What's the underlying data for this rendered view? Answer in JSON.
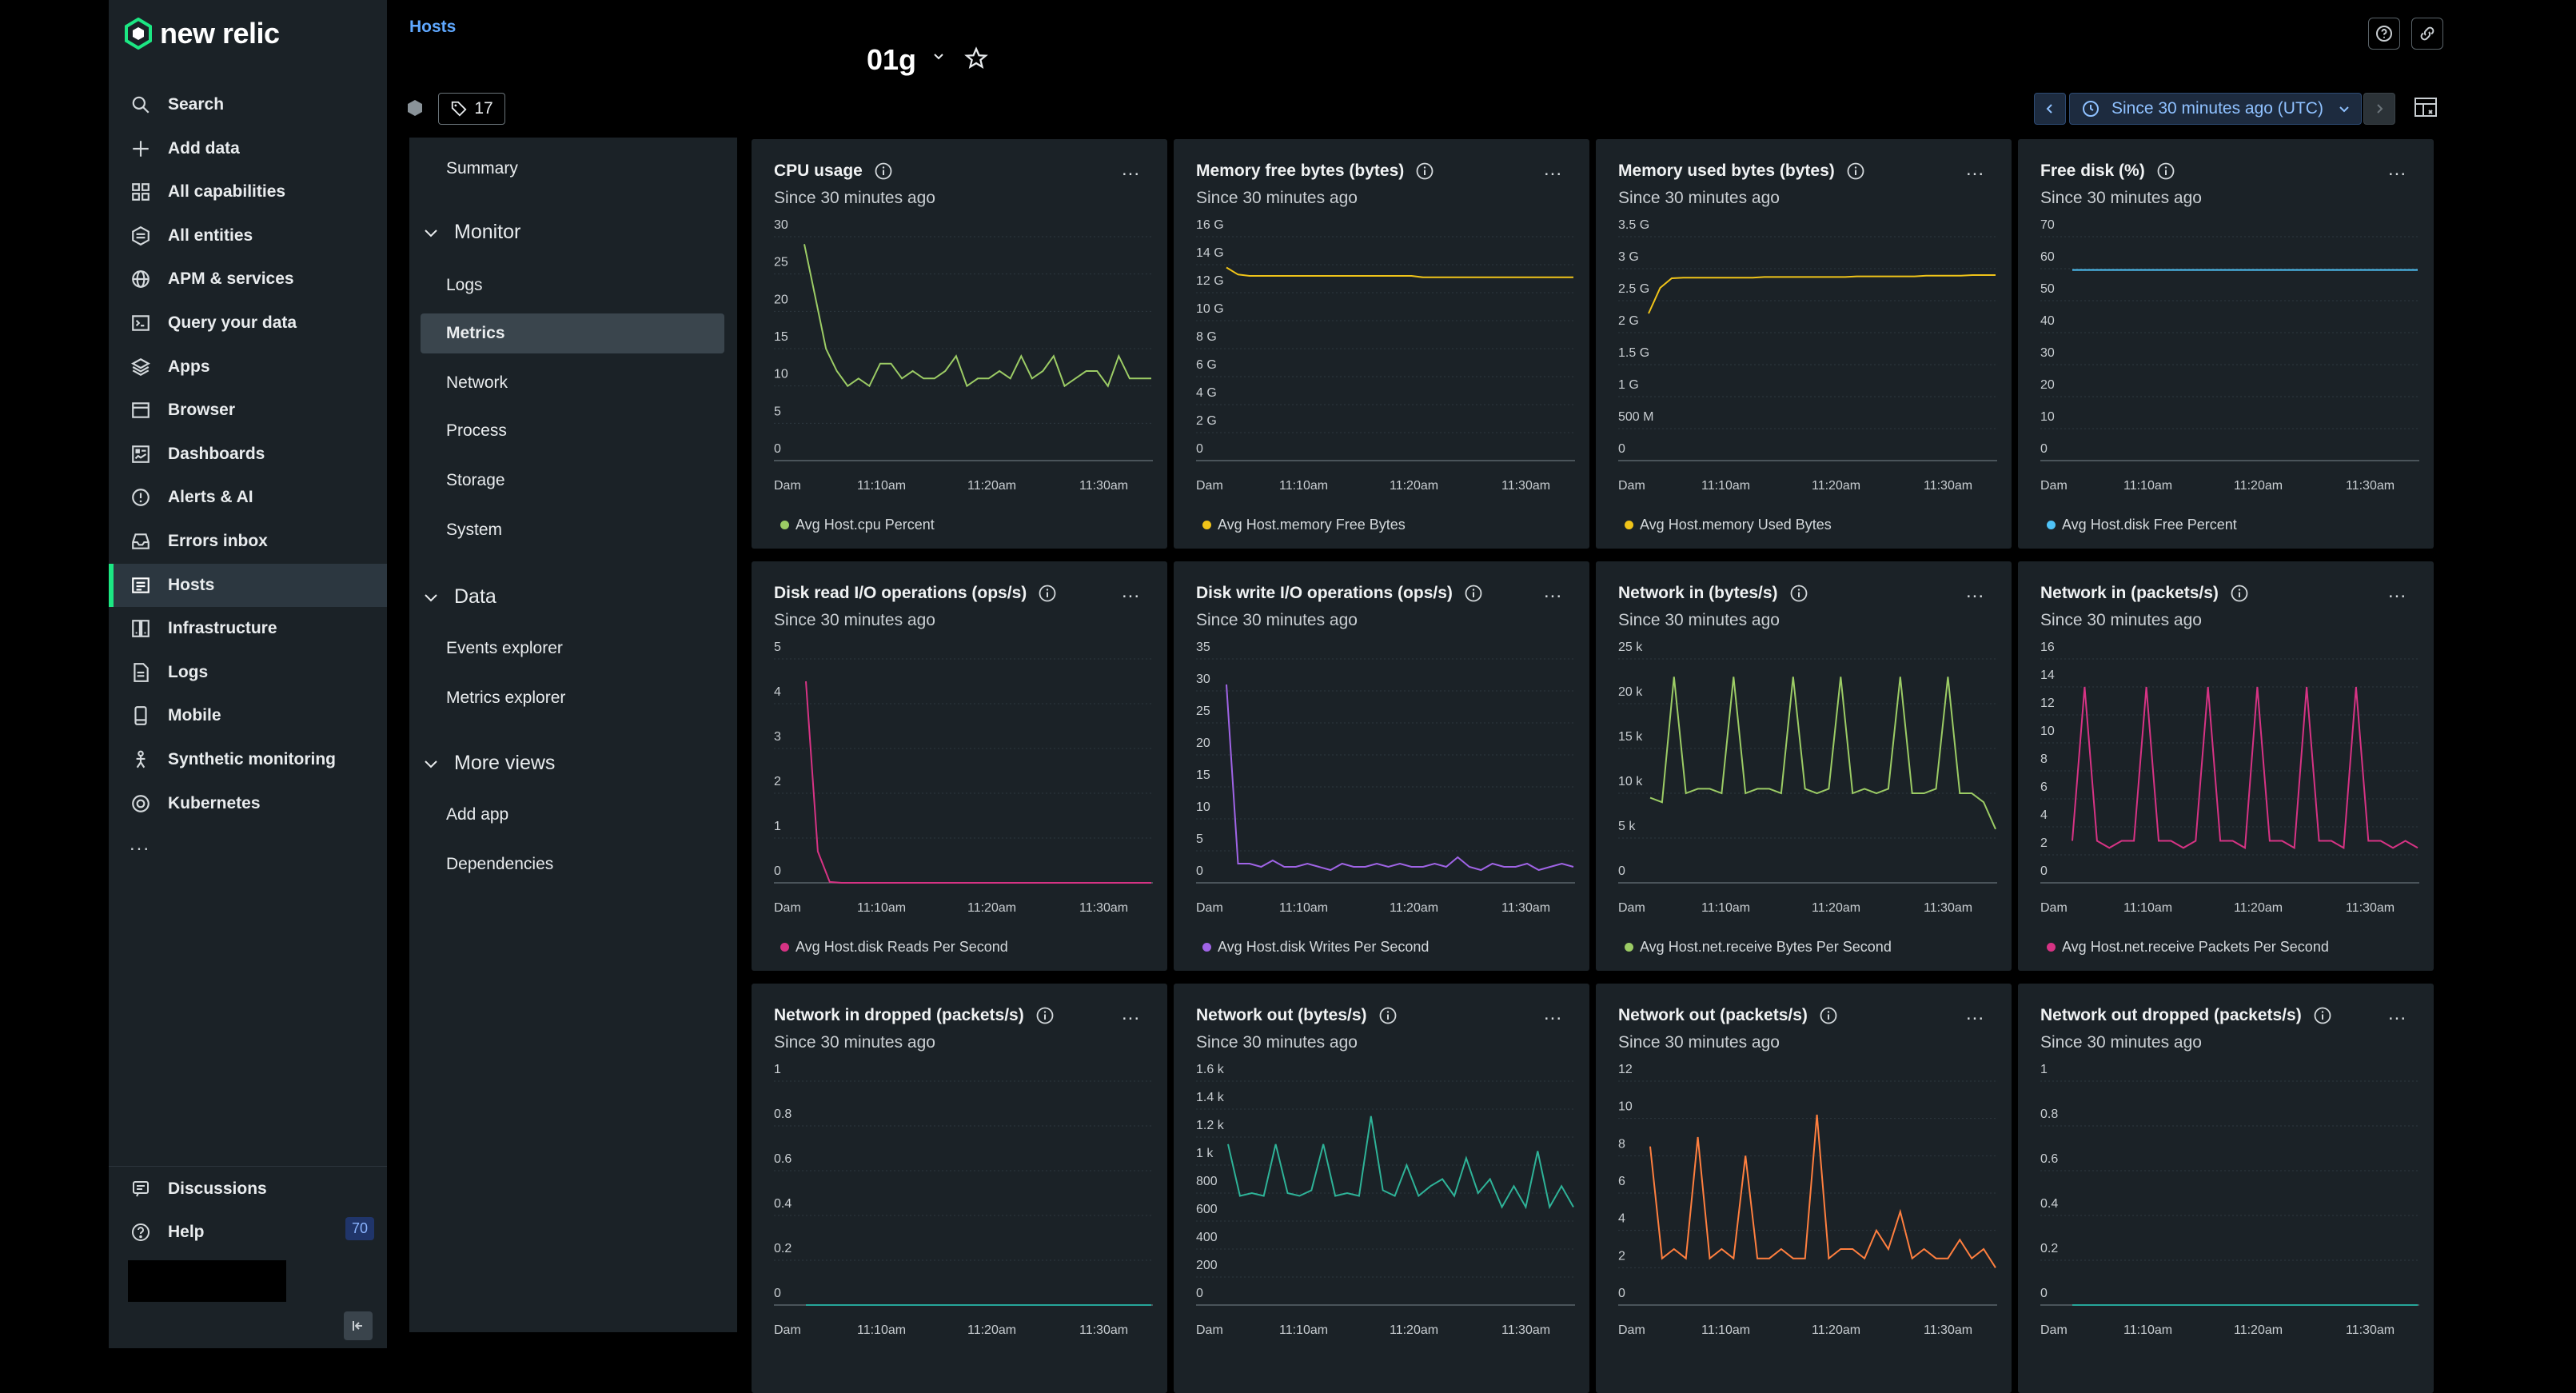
{
  "nav": {
    "logo_text": "new relic",
    "items": [
      {
        "label": "Search",
        "icon": "search-icon"
      },
      {
        "label": "Add data",
        "icon": "plus-icon"
      },
      {
        "label": "All capabilities",
        "icon": "grid-icon"
      },
      {
        "label": "All entities",
        "icon": "entities-icon"
      },
      {
        "label": "APM & services",
        "icon": "globe-icon"
      },
      {
        "label": "Query your data",
        "icon": "terminal-icon"
      },
      {
        "label": "Apps",
        "icon": "layers-icon"
      },
      {
        "label": "Browser",
        "icon": "browser-icon"
      },
      {
        "label": "Dashboards",
        "icon": "dashboard-icon"
      },
      {
        "label": "Alerts & AI",
        "icon": "alert-icon"
      },
      {
        "label": "Errors inbox",
        "icon": "inbox-icon"
      },
      {
        "label": "Hosts",
        "icon": "hosts-icon",
        "active": true
      },
      {
        "label": "Infrastructure",
        "icon": "infrastructure-icon"
      },
      {
        "label": "Logs",
        "icon": "logs-icon"
      },
      {
        "label": "Mobile",
        "icon": "mobile-icon"
      },
      {
        "label": "Synthetic monitoring",
        "icon": "synthetic-icon"
      },
      {
        "label": "Kubernetes",
        "icon": "kubernetes-icon"
      }
    ],
    "more": "...",
    "discussions": "Discussions",
    "help": "Help",
    "help_count": "70"
  },
  "header": {
    "breadcrumb": "Hosts",
    "title_suffix": "01g",
    "tag_count": "17",
    "time_range": "Since 30 minutes ago (UTC)"
  },
  "subnav": {
    "summary": "Summary",
    "monitor": "Monitor",
    "logs": "Logs",
    "metrics": "Metrics",
    "network": "Network",
    "process": "Process",
    "storage": "Storage",
    "system": "System",
    "data": "Data",
    "events_explorer": "Events explorer",
    "metrics_explorer": "Metrics explorer",
    "more_views": "More views",
    "add_app": "Add app",
    "dependencies": "Dependencies"
  },
  "chart_data": [
    {
      "type": "line",
      "title": "CPU usage",
      "subtitle": "Since 30 minutes ago",
      "legend": "Avg Host.cpu Percent",
      "color": "#9ccc65",
      "y_ticks": [
        "30",
        "25",
        "20",
        "15",
        "10",
        "5",
        "0"
      ],
      "ylim": [
        0,
        30
      ],
      "x_ticks": [
        "Dam",
        "11:10am",
        "11:20am",
        "11:30am"
      ],
      "values": [
        29,
        22,
        15,
        12,
        10,
        11,
        10,
        13,
        13,
        11,
        12,
        11,
        11,
        12,
        14,
        10,
        11,
        11,
        12,
        11,
        14,
        11,
        12,
        14,
        10,
        11,
        12,
        12,
        10,
        14,
        11,
        11,
        11
      ]
    },
    {
      "type": "line",
      "title": "Memory free bytes (bytes)",
      "subtitle": "Since 30 minutes ago",
      "legend": "Avg Host.memory Free Bytes",
      "color": "#f0c419",
      "y_ticks": [
        "16 G",
        "14 G",
        "12 G",
        "10 G",
        "8 G",
        "6 G",
        "4 G",
        "2 G",
        "0"
      ],
      "ylim": [
        0,
        16
      ],
      "x_ticks": [
        "Dam",
        "11:10am",
        "11:20am",
        "11:30am"
      ],
      "values": [
        13.8,
        13.3,
        13.2,
        13.2,
        13.2,
        13.2,
        13.2,
        13.2,
        13.2,
        13.2,
        13.2,
        13.2,
        13.2,
        13.2,
        13.2,
        13.2,
        13.2,
        13.1,
        13.1,
        13.1,
        13.1,
        13.1,
        13.1,
        13.1,
        13.1,
        13.1,
        13.1,
        13.1,
        13.1,
        13.1,
        13.1
      ]
    },
    {
      "type": "line",
      "title": "Memory used bytes (bytes)",
      "subtitle": "Since 30 minutes ago",
      "legend": "Avg Host.memory Used Bytes",
      "color": "#f0c419",
      "y_ticks": [
        "3.5 G",
        "3 G",
        "2.5 G",
        "2 G",
        "1.5 G",
        "1 G",
        "500 M",
        "0"
      ],
      "ylim": [
        0,
        3.5
      ],
      "x_ticks": [
        "Dam",
        "11:10am",
        "11:20am",
        "11:30am"
      ],
      "values": [
        2.3,
        2.7,
        2.85,
        2.86,
        2.86,
        2.86,
        2.86,
        2.86,
        2.86,
        2.86,
        2.87,
        2.87,
        2.87,
        2.87,
        2.87,
        2.87,
        2.87,
        2.87,
        2.88,
        2.88,
        2.88,
        2.88,
        2.88,
        2.88,
        2.89,
        2.89,
        2.89,
        2.89,
        2.9,
        2.9,
        2.9
      ]
    },
    {
      "type": "line",
      "title": "Free disk (%)",
      "subtitle": "Since 30 minutes ago",
      "legend": "Avg Host.disk Free Percent",
      "color": "#4fc3f7",
      "y_ticks": [
        "70",
        "60",
        "50",
        "40",
        "30",
        "20",
        "10",
        "0"
      ],
      "ylim": [
        0,
        70
      ],
      "x_ticks": [
        "Dam",
        "11:10am",
        "11:20am",
        "11:30am"
      ],
      "values": [
        59.6,
        59.6,
        59.6,
        59.6,
        59.6,
        59.6,
        59.6,
        59.6,
        59.6,
        59.6,
        59.6,
        59.6,
        59.6,
        59.6,
        59.6,
        59.6,
        59.6,
        59.6,
        59.6,
        59.6,
        59.6,
        59.6,
        59.6,
        59.6,
        59.6,
        59.6,
        59.6,
        59.6,
        59.6,
        59.6
      ]
    },
    {
      "type": "line",
      "title": "Disk read I/O operations (ops/s)",
      "subtitle": "Since 30 minutes ago",
      "legend": "Avg Host.disk Reads Per Second",
      "color": "#d63384",
      "y_ticks": [
        "5",
        "4",
        "3",
        "2",
        "1",
        "0"
      ],
      "ylim": [
        0,
        5
      ],
      "x_ticks": [
        "Dam",
        "11:10am",
        "11:20am",
        "11:30am"
      ],
      "values": [
        4.5,
        0.7,
        0.02,
        0,
        0,
        0,
        0,
        0,
        0,
        0,
        0,
        0,
        0,
        0,
        0,
        0,
        0,
        0,
        0,
        0,
        0,
        0,
        0,
        0,
        0,
        0,
        0,
        0,
        0,
        0
      ]
    },
    {
      "type": "line",
      "title": "Disk write I/O operations (ops/s)",
      "subtitle": "Since 30 minutes ago",
      "legend": "Avg Host.disk Writes Per Second",
      "color": "#a064e6",
      "y_ticks": [
        "35",
        "30",
        "25",
        "20",
        "15",
        "10",
        "5",
        "0"
      ],
      "ylim": [
        0,
        35
      ],
      "x_ticks": [
        "Dam",
        "11:10am",
        "11:20am",
        "11:30am"
      ],
      "values": [
        31,
        3,
        3,
        2.5,
        3.5,
        2.5,
        2.5,
        3,
        2.5,
        2,
        3,
        2.5,
        2.5,
        3,
        2.5,
        3,
        2.5,
        2.5,
        3,
        2.5,
        4,
        2.5,
        2,
        3,
        2.5,
        2.5,
        3,
        2,
        2.5,
        3,
        2.5
      ]
    },
    {
      "type": "line",
      "title": "Network in (bytes/s)",
      "subtitle": "Since 30 minutes ago",
      "legend": "Avg Host.net.receive Bytes Per Second",
      "color": "#9ccc65",
      "y_ticks": [
        "25 k",
        "20 k",
        "15 k",
        "10 k",
        "5 k",
        "0"
      ],
      "ylim": [
        0,
        25000
      ],
      "x_ticks": [
        "Dam",
        "11:10am",
        "11:20am",
        "11:30am"
      ],
      "values": [
        9500,
        9000,
        23000,
        10000,
        10500,
        10500,
        10000,
        23000,
        10000,
        10500,
        10500,
        10000,
        23000,
        10500,
        10000,
        10500,
        23000,
        10000,
        10500,
        10000,
        10500,
        23000,
        10000,
        10000,
        10500,
        23000,
        10000,
        10000,
        9000,
        6000
      ]
    },
    {
      "type": "line",
      "title": "Network in (packets/s)",
      "subtitle": "Since 30 minutes ago",
      "legend": "Avg Host.net.receive Packets Per Second",
      "color": "#d63384",
      "y_ticks": [
        "16",
        "14",
        "12",
        "10",
        "8",
        "6",
        "4",
        "2",
        "0"
      ],
      "ylim": [
        0,
        16
      ],
      "x_ticks": [
        "Dam",
        "11:10am",
        "11:20am",
        "11:30am"
      ],
      "values": [
        3,
        14,
        3,
        2.5,
        3,
        3,
        14,
        3,
        3,
        2.5,
        3,
        14,
        3,
        3,
        2.5,
        14,
        3,
        3,
        2.5,
        14,
        3,
        3,
        2.5,
        14,
        3,
        3,
        2.5,
        3,
        2.5
      ]
    },
    {
      "type": "line",
      "title": "Network in dropped (packets/s)",
      "subtitle": "Since 30 minutes ago",
      "legend": "",
      "color": "#26a69a",
      "y_ticks": [
        "1",
        "0.8",
        "0.6",
        "0.4",
        "0.2",
        "0"
      ],
      "ylim": [
        0,
        1
      ],
      "x_ticks": [
        "Dam",
        "11:10am",
        "11:20am",
        "11:30am"
      ],
      "values": [
        0,
        0,
        0,
        0,
        0,
        0,
        0,
        0,
        0,
        0,
        0,
        0,
        0,
        0,
        0,
        0,
        0,
        0,
        0,
        0,
        0,
        0,
        0,
        0,
        0,
        0,
        0,
        0,
        0,
        0
      ]
    },
    {
      "type": "line",
      "title": "Network out (bytes/s)",
      "subtitle": "Since 30 minutes ago",
      "legend": "",
      "color": "#2eb398",
      "y_ticks": [
        "1.6 k",
        "1.4 k",
        "1.2 k",
        "1 k",
        "800",
        "600",
        "400",
        "200",
        "0"
      ],
      "ylim": [
        0,
        1600
      ],
      "x_ticks": [
        "Dam",
        "11:10am",
        "11:20am",
        "11:30am"
      ],
      "values": [
        1150,
        780,
        800,
        780,
        1150,
        800,
        780,
        820,
        1150,
        780,
        800,
        780,
        1350,
        820,
        780,
        1000,
        780,
        850,
        900,
        780,
        1050,
        800,
        900,
        700,
        850,
        700,
        1100,
        700,
        850,
        700
      ]
    },
    {
      "type": "line",
      "title": "Network out (packets/s)",
      "subtitle": "Since 30 minutes ago",
      "legend": "",
      "color": "#ff7f3f",
      "y_ticks": [
        "12",
        "10",
        "8",
        "6",
        "4",
        "2",
        "0"
      ],
      "ylim": [
        0,
        12
      ],
      "x_ticks": [
        "Dam",
        "11:10am",
        "11:20am",
        "11:30am"
      ],
      "values": [
        8.5,
        2.5,
        3,
        2.5,
        9,
        2.5,
        3,
        2.5,
        8,
        2.5,
        2.5,
        3,
        2.5,
        2.5,
        10.2,
        2.5,
        3,
        3,
        2.5,
        4,
        3,
        5,
        2.5,
        3,
        2.5,
        2.5,
        3.5,
        2.5,
        3,
        2
      ]
    },
    {
      "type": "line",
      "title": "Network out dropped (packets/s)",
      "subtitle": "Since 30 minutes ago",
      "legend": "",
      "color": "#26a69a",
      "y_ticks": [
        "1",
        "0.8",
        "0.6",
        "0.4",
        "0.2",
        "0"
      ],
      "ylim": [
        0,
        1
      ],
      "x_ticks": [
        "Dam",
        "11:10am",
        "11:20am",
        "11:30am"
      ],
      "values": [
        0,
        0,
        0,
        0,
        0,
        0,
        0,
        0,
        0,
        0,
        0,
        0,
        0,
        0,
        0,
        0,
        0,
        0,
        0,
        0,
        0,
        0,
        0,
        0,
        0,
        0,
        0,
        0,
        0,
        0
      ]
    }
  ]
}
